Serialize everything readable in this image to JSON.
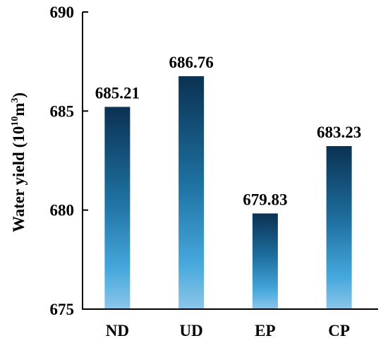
{
  "chart_data": {
    "type": "bar",
    "categories": [
      "ND",
      "UD",
      "EP",
      "CP"
    ],
    "values": [
      685.21,
      686.76,
      679.83,
      683.23
    ],
    "value_labels": [
      "685.21",
      "686.76",
      "679.83",
      "683.23"
    ],
    "title": "",
    "xlabel": "",
    "ylabel": "Water yield",
    "ylabel_unit_base": "10",
    "ylabel_unit_exp_a": "10",
    "ylabel_unit_mid": "m",
    "ylabel_unit_exp_b": "3",
    "ylim": [
      675,
      690
    ],
    "yticks": [
      675,
      680,
      685,
      690
    ],
    "grid": false,
    "legend": "none",
    "colors": {
      "bar_top": "#0b3152",
      "bar_mid": "#1d6f9f",
      "bar_bottom": "#8cc6ea",
      "axis": "#000000"
    }
  }
}
